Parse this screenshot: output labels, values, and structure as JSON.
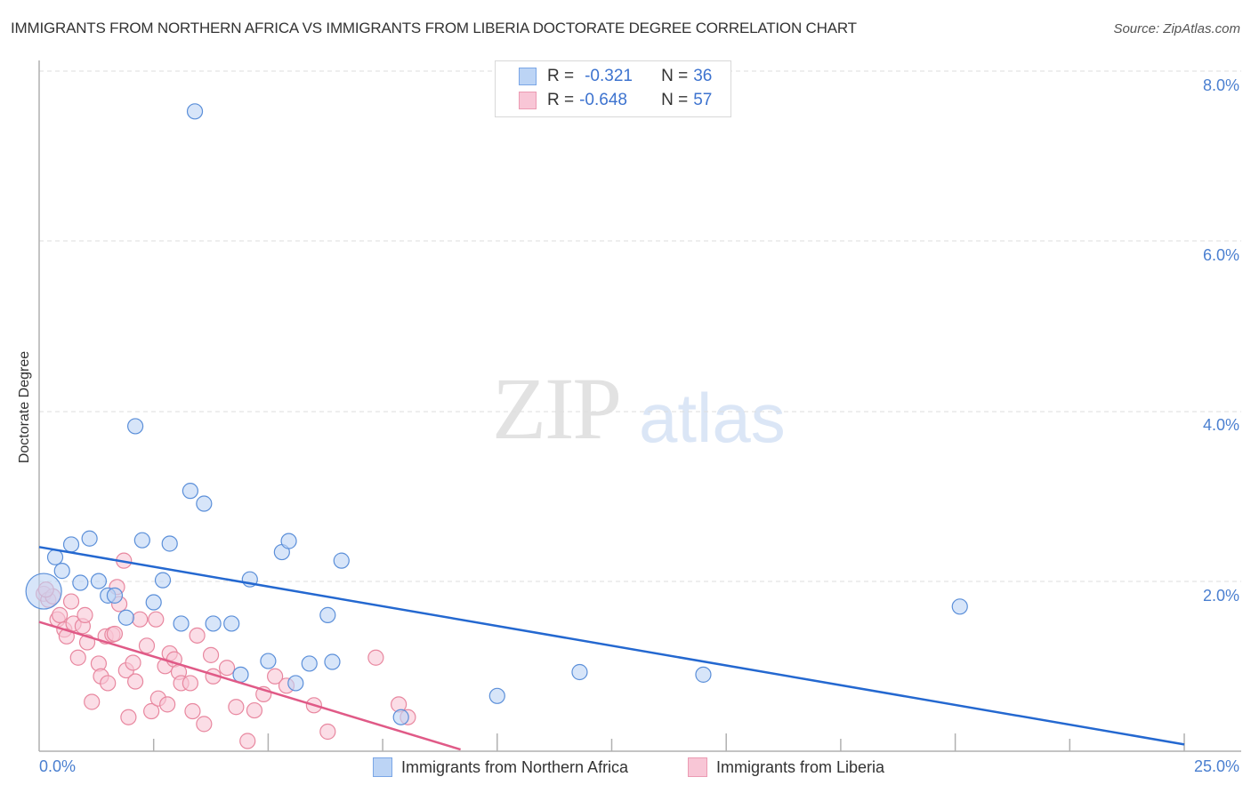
{
  "header": {
    "title": "IMMIGRANTS FROM NORTHERN AFRICA VS IMMIGRANTS FROM LIBERIA DOCTORATE DEGREE CORRELATION CHART",
    "source": "Source: ZipAtlas.com"
  },
  "watermark": {
    "zip": "ZIP",
    "atlas": "atlas"
  },
  "legend": {
    "series1": {
      "r_label": "R =",
      "r_value": "-0.321",
      "n_label": "N =",
      "n_value": "36"
    },
    "series2": {
      "r_label": "R =",
      "r_value": "-0.648",
      "n_label": "N =",
      "n_value": "57"
    }
  },
  "axes": {
    "ylabel": "Doctorate Degree",
    "yticks": [
      "8.0%",
      "6.0%",
      "4.0%",
      "2.0%"
    ],
    "xticks": [
      "0.0%",
      "25.0%"
    ]
  },
  "bottom_legend": {
    "series1": "Immigrants from Northern Africa",
    "series2": "Immigrants from Liberia"
  },
  "colors": {
    "blue_fill": "#bcd4f5",
    "blue_stroke": "#5b8fd9",
    "blue_line": "#2468d0",
    "pink_fill": "#f8c6d6",
    "pink_stroke": "#e8879f",
    "pink_line": "#e05a87",
    "tick_label": "#4a7fd0"
  },
  "chart_data": {
    "type": "scatter",
    "title": "IMMIGRANTS FROM NORTHERN AFRICA VS IMMIGRANTS FROM LIBERIA DOCTORATE DEGREE CORRELATION CHART",
    "xlabel": "",
    "ylabel": "Doctorate Degree",
    "xlim": [
      0,
      25
    ],
    "ylim": [
      0,
      8.0
    ],
    "x_unit": "%",
    "y_unit": "%",
    "grid": "horizontal dashed at 2%, 4%, 6%, 8%",
    "legend_position": "top-center (stats) and bottom-center (series names)",
    "series": [
      {
        "name": "Immigrants from Northern Africa",
        "color": "#5b8fd9",
        "R": -0.321,
        "N": 36,
        "trendline": {
          "x": [
            0,
            25
          ],
          "y": [
            2.4,
            0.08
          ]
        },
        "points": [
          {
            "x": 0.1,
            "y": 1.88,
            "big": true
          },
          {
            "x": 0.35,
            "y": 2.28
          },
          {
            "x": 0.5,
            "y": 2.12
          },
          {
            "x": 0.7,
            "y": 2.43
          },
          {
            "x": 0.9,
            "y": 1.98
          },
          {
            "x": 1.1,
            "y": 2.5
          },
          {
            "x": 1.3,
            "y": 2.0
          },
          {
            "x": 1.5,
            "y": 1.83
          },
          {
            "x": 1.65,
            "y": 1.83
          },
          {
            "x": 1.9,
            "y": 1.57
          },
          {
            "x": 2.1,
            "y": 3.82
          },
          {
            "x": 2.25,
            "y": 2.48
          },
          {
            "x": 2.5,
            "y": 1.75
          },
          {
            "x": 2.7,
            "y": 2.01
          },
          {
            "x": 2.85,
            "y": 2.44
          },
          {
            "x": 3.1,
            "y": 1.5
          },
          {
            "x": 3.3,
            "y": 3.06
          },
          {
            "x": 3.4,
            "y": 7.52
          },
          {
            "x": 3.6,
            "y": 2.91
          },
          {
            "x": 3.8,
            "y": 1.5
          },
          {
            "x": 4.2,
            "y": 1.5
          },
          {
            "x": 4.4,
            "y": 0.9
          },
          {
            "x": 4.6,
            "y": 2.02
          },
          {
            "x": 5.0,
            "y": 1.06
          },
          {
            "x": 5.3,
            "y": 2.34
          },
          {
            "x": 5.45,
            "y": 2.47
          },
          {
            "x": 5.6,
            "y": 0.8
          },
          {
            "x": 5.9,
            "y": 1.03
          },
          {
            "x": 6.3,
            "y": 1.6
          },
          {
            "x": 6.4,
            "y": 1.05
          },
          {
            "x": 6.6,
            "y": 2.24
          },
          {
            "x": 7.9,
            "y": 0.4
          },
          {
            "x": 10.0,
            "y": 0.65
          },
          {
            "x": 11.8,
            "y": 0.93
          },
          {
            "x": 14.5,
            "y": 0.9
          },
          {
            "x": 20.1,
            "y": 1.7
          }
        ]
      },
      {
        "name": "Immigrants from Liberia",
        "color": "#e8879f",
        "R": -0.648,
        "N": 57,
        "trendline": {
          "x": [
            0,
            9.2
          ],
          "y": [
            1.52,
            0.02
          ]
        },
        "points": [
          {
            "x": 0.1,
            "y": 1.85
          },
          {
            "x": 0.2,
            "y": 1.78
          },
          {
            "x": 0.3,
            "y": 1.82
          },
          {
            "x": 0.4,
            "y": 1.55
          },
          {
            "x": 0.45,
            "y": 1.6
          },
          {
            "x": 0.55,
            "y": 1.43
          },
          {
            "x": 0.6,
            "y": 1.35
          },
          {
            "x": 0.7,
            "y": 1.76
          },
          {
            "x": 0.75,
            "y": 1.5
          },
          {
            "x": 0.85,
            "y": 1.1
          },
          {
            "x": 0.95,
            "y": 1.47
          },
          {
            "x": 1.0,
            "y": 1.6
          },
          {
            "x": 1.05,
            "y": 1.28
          },
          {
            "x": 1.15,
            "y": 0.58
          },
          {
            "x": 1.3,
            "y": 1.03
          },
          {
            "x": 1.35,
            "y": 0.88
          },
          {
            "x": 1.45,
            "y": 1.35
          },
          {
            "x": 1.5,
            "y": 0.8
          },
          {
            "x": 1.6,
            "y": 1.37
          },
          {
            "x": 1.65,
            "y": 1.38
          },
          {
            "x": 1.7,
            "y": 1.93
          },
          {
            "x": 1.75,
            "y": 1.73
          },
          {
            "x": 1.85,
            "y": 2.24
          },
          {
            "x": 1.9,
            "y": 0.95
          },
          {
            "x": 1.95,
            "y": 0.4
          },
          {
            "x": 2.05,
            "y": 1.04
          },
          {
            "x": 2.1,
            "y": 0.82
          },
          {
            "x": 2.2,
            "y": 1.55
          },
          {
            "x": 2.35,
            "y": 1.24
          },
          {
            "x": 2.45,
            "y": 0.47
          },
          {
            "x": 2.55,
            "y": 1.55
          },
          {
            "x": 2.6,
            "y": 0.62
          },
          {
            "x": 2.75,
            "y": 1.0
          },
          {
            "x": 2.8,
            "y": 0.55
          },
          {
            "x": 2.85,
            "y": 1.15
          },
          {
            "x": 2.95,
            "y": 1.08
          },
          {
            "x": 3.05,
            "y": 0.93
          },
          {
            "x": 3.1,
            "y": 0.8
          },
          {
            "x": 3.3,
            "y": 0.8
          },
          {
            "x": 3.35,
            "y": 0.47
          },
          {
            "x": 3.45,
            "y": 1.36
          },
          {
            "x": 3.6,
            "y": 0.32
          },
          {
            "x": 3.75,
            "y": 1.13
          },
          {
            "x": 3.8,
            "y": 0.88
          },
          {
            "x": 4.1,
            "y": 0.98
          },
          {
            "x": 4.3,
            "y": 0.52
          },
          {
            "x": 4.55,
            "y": 0.12
          },
          {
            "x": 4.7,
            "y": 0.48
          },
          {
            "x": 4.9,
            "y": 0.67
          },
          {
            "x": 5.15,
            "y": 0.88
          },
          {
            "x": 5.4,
            "y": 0.77
          },
          {
            "x": 6.0,
            "y": 0.54
          },
          {
            "x": 6.3,
            "y": 0.23
          },
          {
            "x": 7.35,
            "y": 1.1
          },
          {
            "x": 7.85,
            "y": 0.55
          },
          {
            "x": 8.05,
            "y": 0.4
          },
          {
            "x": 0.15,
            "y": 1.9
          }
        ]
      }
    ]
  }
}
